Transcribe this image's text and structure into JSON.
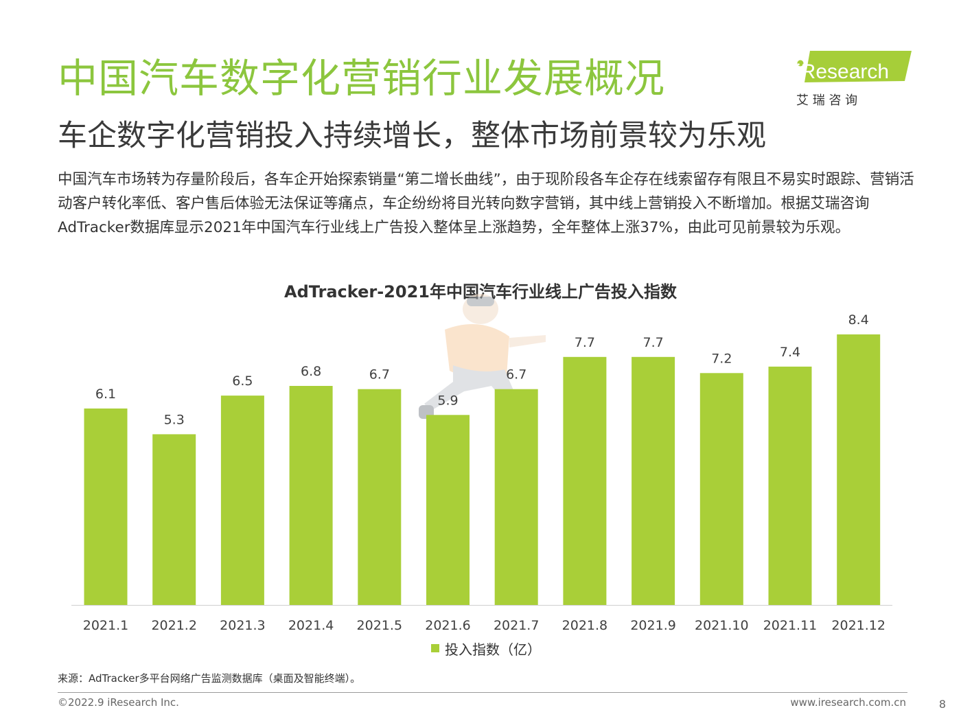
{
  "header": {
    "title": "中国汽车数字化营销行业发展概况",
    "subtitle": "车企数字化营销投入持续增长，整体市场前景较为乐观"
  },
  "logo": {
    "brand": "iResearch",
    "brand_cn": "艾 瑞 咨 询",
    "color": "#A6CE39"
  },
  "intro": "中国汽车市场转为存量阶段后，各车企开始探索销量“第二增长曲线”，由于现阶段各车企存在线索留存有限且不易实时跟踪、营销活动客户转化率低、客户售后体验无法保证等痛点，车企纷纷将目光转向数字营销，其中线上营销投入不断增加。根据艾瑞咨询AdTracker数据库显示2021年中国汽车行业线上广告投入整体呈上涨趋势，全年整体上涨37%，由此可见前景较为乐观。",
  "chart_data": {
    "type": "bar",
    "title": "AdTracker-2021年中国汽车行业线上广告投入指数",
    "categories": [
      "2021.1",
      "2021.2",
      "2021.3",
      "2021.4",
      "2021.5",
      "2021.6",
      "2021.7",
      "2021.8",
      "2021.9",
      "2021.10",
      "2021.11",
      "2021.12"
    ],
    "series": [
      {
        "name": "投入指数（亿）",
        "values": [
          6.1,
          5.3,
          6.5,
          6.8,
          6.7,
          5.9,
          6.7,
          7.7,
          7.7,
          7.2,
          7.4,
          8.4
        ],
        "color": "#A9CF38"
      }
    ],
    "ylim": [
      0,
      8.4
    ],
    "grid": false,
    "legend_position": "bottom-center",
    "data_labels": true
  },
  "footer": {
    "source": "来源：AdTracker多平台网络广告监测数据库（桌面及智能终端）。",
    "copyright": "©2022.9 iResearch Inc.",
    "website": "www.iresearch.com.cn",
    "page_number": "8"
  }
}
